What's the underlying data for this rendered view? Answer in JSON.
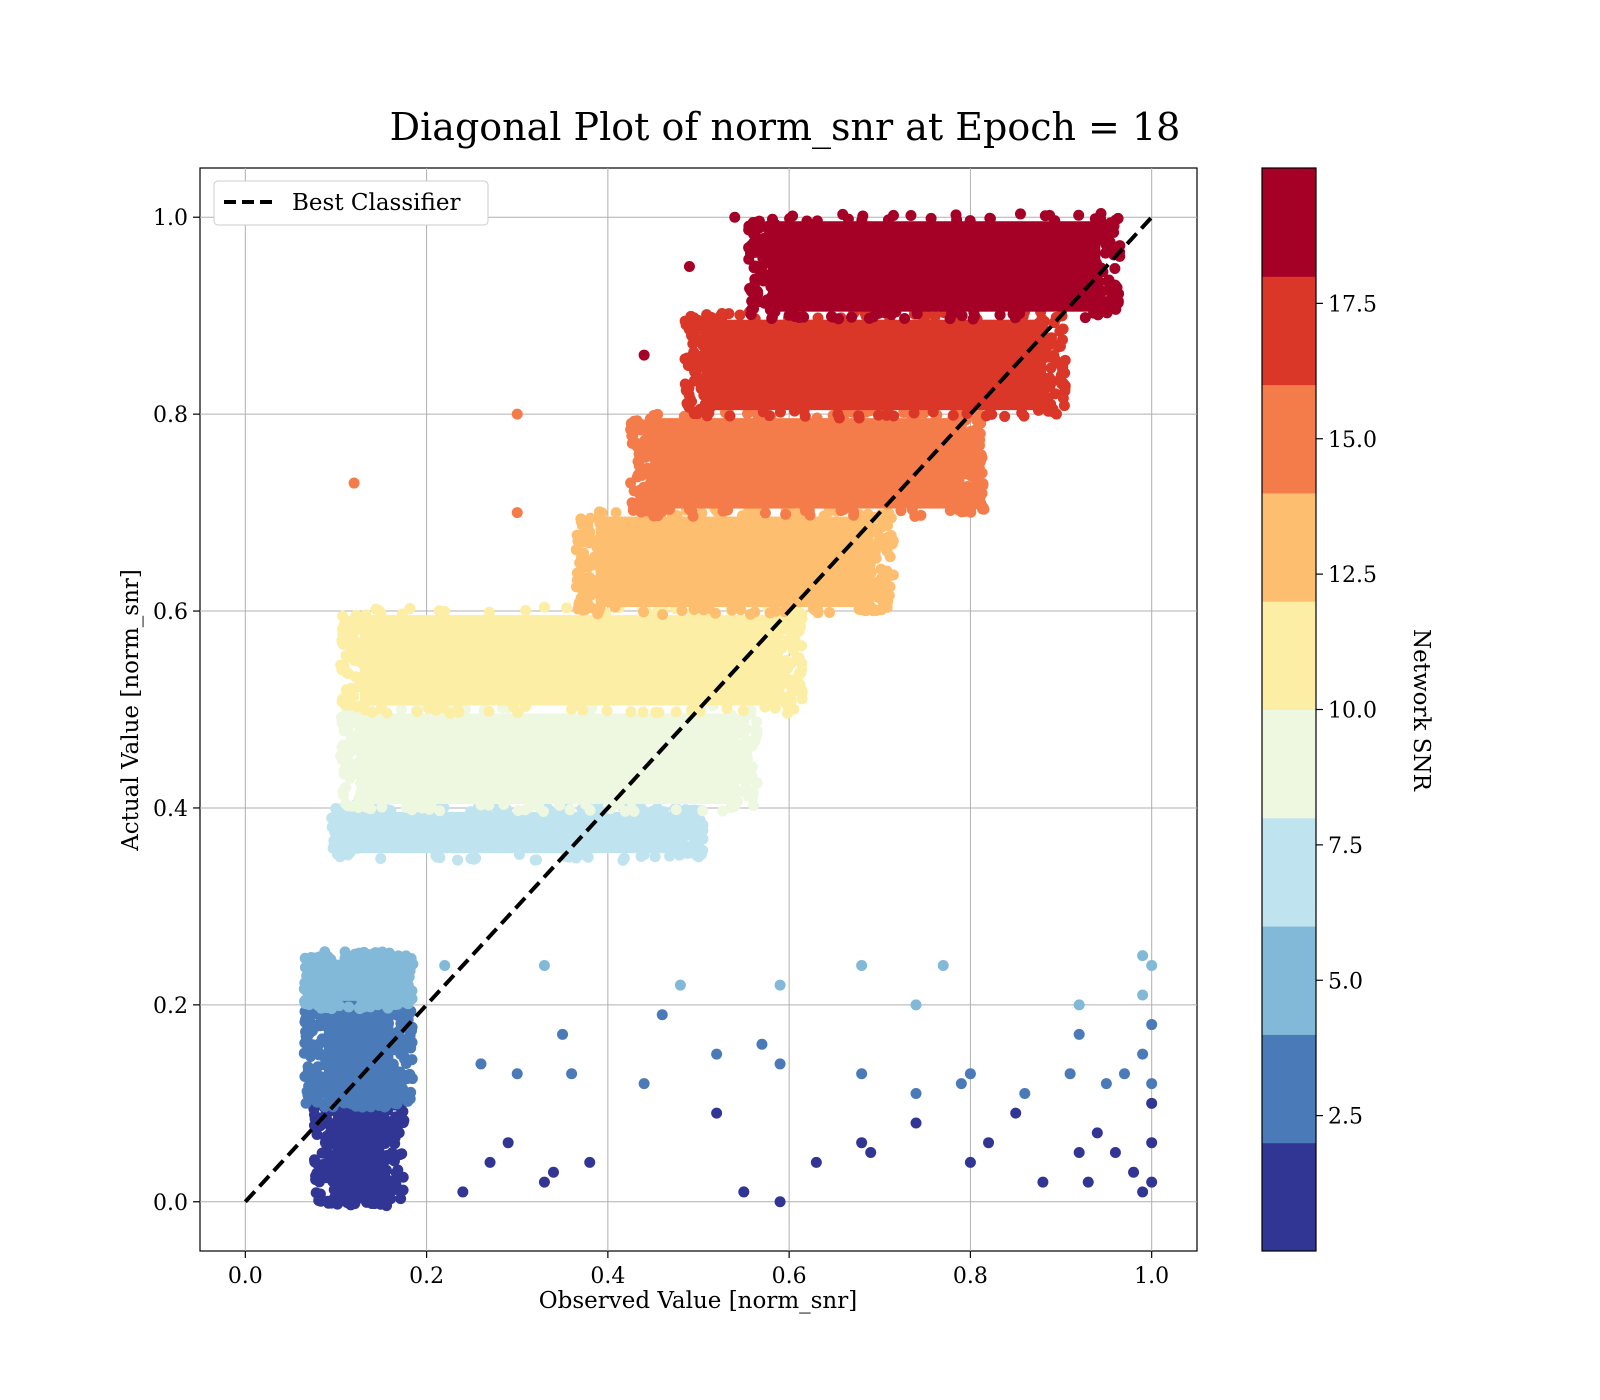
{
  "chart_data": {
    "type": "scatter",
    "title": "Diagonal Plot of norm_snr at Epoch = 18",
    "xlabel": "Observed Value [norm_snr]",
    "ylabel": "Actual Value [norm_snr]",
    "xlim": [
      -0.05,
      1.05
    ],
    "ylim": [
      -0.05,
      1.05
    ],
    "x_ticks": [
      "0.0",
      "0.2",
      "0.4",
      "0.6",
      "0.8",
      "1.0"
    ],
    "y_ticks": [
      "0.0",
      "0.2",
      "0.4",
      "0.6",
      "0.8",
      "1.0"
    ],
    "grid": true,
    "legend": {
      "position": "top-left",
      "entries": [
        "Best Classifier"
      ]
    },
    "reference_line": {
      "name": "Best Classifier",
      "x": [
        0,
        1
      ],
      "y": [
        0,
        1
      ],
      "style": "dashed",
      "color": "#000000"
    },
    "colorbar": {
      "label": "Network SNR",
      "range": [
        0,
        20
      ],
      "ticks": [
        "2.5",
        "5.0",
        "7.5",
        "10.0",
        "12.5",
        "15.0",
        "17.5"
      ],
      "tick_values": [
        2.5,
        5.0,
        7.5,
        10.0,
        12.5,
        15.0,
        17.5
      ],
      "colors": [
        "#313695",
        "#4a7ab7",
        "#82b8d8",
        "#bfe3ef",
        "#eef7e0",
        "#fdeea5",
        "#fdbf6f",
        "#f47c4a",
        "#da3728",
        "#a50026"
      ]
    },
    "bands": [
      {
        "color_index": 0,
        "ymin": 0.0,
        "ymax": 0.1,
        "xmin": 0.09,
        "xmax": 0.16,
        "dense": true
      },
      {
        "color_index": 1,
        "ymin": 0.1,
        "ymax": 0.2,
        "xmin": 0.08,
        "xmax": 0.17,
        "dense": true
      },
      {
        "color_index": 2,
        "ymin": 0.2,
        "ymax": 0.25,
        "xmin": 0.08,
        "xmax": 0.17,
        "dense": true
      },
      {
        "color_index": 3,
        "ymin": 0.35,
        "ymax": 0.4,
        "xmin": 0.11,
        "xmax": 0.49,
        "dense": true
      },
      {
        "color_index": 4,
        "ymin": 0.4,
        "ymax": 0.5,
        "xmin": 0.12,
        "xmax": 0.55,
        "dense": true
      },
      {
        "color_index": 5,
        "ymin": 0.5,
        "ymax": 0.6,
        "xmin": 0.12,
        "xmax": 0.6,
        "dense": true
      },
      {
        "color_index": 6,
        "ymin": 0.6,
        "ymax": 0.7,
        "xmin": 0.38,
        "xmax": 0.7,
        "dense": true
      },
      {
        "color_index": 7,
        "ymin": 0.7,
        "ymax": 0.8,
        "xmin": 0.44,
        "xmax": 0.8,
        "dense": true
      },
      {
        "color_index": 8,
        "ymin": 0.8,
        "ymax": 0.9,
        "xmin": 0.5,
        "xmax": 0.89,
        "dense": true
      },
      {
        "color_index": 9,
        "ymin": 0.9,
        "ymax": 1.0,
        "xmin": 0.57,
        "xmax": 0.95,
        "dense": true
      }
    ],
    "outliers": [
      {
        "x": 0.12,
        "y": 0.73,
        "c": 7
      },
      {
        "x": 0.3,
        "y": 0.8,
        "c": 7
      },
      {
        "x": 0.3,
        "y": 0.7,
        "c": 7
      },
      {
        "x": 0.54,
        "y": 1.0,
        "c": 9
      },
      {
        "x": 0.49,
        "y": 0.95,
        "c": 9
      },
      {
        "x": 0.44,
        "y": 0.86,
        "c": 9
      },
      {
        "x": 0.22,
        "y": 0.24,
        "c": 2
      },
      {
        "x": 0.33,
        "y": 0.24,
        "c": 2
      },
      {
        "x": 0.48,
        "y": 0.22,
        "c": 2
      },
      {
        "x": 0.59,
        "y": 0.22,
        "c": 2
      },
      {
        "x": 0.68,
        "y": 0.24,
        "c": 2
      },
      {
        "x": 0.74,
        "y": 0.2,
        "c": 2
      },
      {
        "x": 0.77,
        "y": 0.24,
        "c": 2
      },
      {
        "x": 0.92,
        "y": 0.2,
        "c": 2
      },
      {
        "x": 0.99,
        "y": 0.25,
        "c": 2
      },
      {
        "x": 1.0,
        "y": 0.24,
        "c": 2
      },
      {
        "x": 0.99,
        "y": 0.21,
        "c": 2
      },
      {
        "x": 0.35,
        "y": 0.17,
        "c": 1
      },
      {
        "x": 0.46,
        "y": 0.19,
        "c": 1
      },
      {
        "x": 0.52,
        "y": 0.15,
        "c": 1
      },
      {
        "x": 0.57,
        "y": 0.16,
        "c": 1
      },
      {
        "x": 0.59,
        "y": 0.14,
        "c": 1
      },
      {
        "x": 0.44,
        "y": 0.12,
        "c": 1
      },
      {
        "x": 0.68,
        "y": 0.13,
        "c": 1
      },
      {
        "x": 0.74,
        "y": 0.11,
        "c": 1
      },
      {
        "x": 0.79,
        "y": 0.12,
        "c": 1
      },
      {
        "x": 0.8,
        "y": 0.13,
        "c": 1
      },
      {
        "x": 0.86,
        "y": 0.11,
        "c": 1
      },
      {
        "x": 0.91,
        "y": 0.13,
        "c": 1
      },
      {
        "x": 0.92,
        "y": 0.17,
        "c": 1
      },
      {
        "x": 0.95,
        "y": 0.12,
        "c": 1
      },
      {
        "x": 0.97,
        "y": 0.13,
        "c": 1
      },
      {
        "x": 0.99,
        "y": 0.15,
        "c": 1
      },
      {
        "x": 1.0,
        "y": 0.18,
        "c": 1
      },
      {
        "x": 1.0,
        "y": 0.12,
        "c": 1
      },
      {
        "x": 0.3,
        "y": 0.13,
        "c": 1
      },
      {
        "x": 0.36,
        "y": 0.13,
        "c": 1
      },
      {
        "x": 0.26,
        "y": 0.14,
        "c": 1
      },
      {
        "x": 0.52,
        "y": 0.09,
        "c": 0
      },
      {
        "x": 0.55,
        "y": 0.01,
        "c": 0
      },
      {
        "x": 0.59,
        "y": 0.0,
        "c": 0
      },
      {
        "x": 0.63,
        "y": 0.04,
        "c": 0
      },
      {
        "x": 0.68,
        "y": 0.06,
        "c": 0
      },
      {
        "x": 0.69,
        "y": 0.05,
        "c": 0
      },
      {
        "x": 0.74,
        "y": 0.08,
        "c": 0
      },
      {
        "x": 0.8,
        "y": 0.04,
        "c": 0
      },
      {
        "x": 0.82,
        "y": 0.06,
        "c": 0
      },
      {
        "x": 0.85,
        "y": 0.09,
        "c": 0
      },
      {
        "x": 0.88,
        "y": 0.02,
        "c": 0
      },
      {
        "x": 0.92,
        "y": 0.05,
        "c": 0
      },
      {
        "x": 0.93,
        "y": 0.02,
        "c": 0
      },
      {
        "x": 0.94,
        "y": 0.07,
        "c": 0
      },
      {
        "x": 0.96,
        "y": 0.05,
        "c": 0
      },
      {
        "x": 0.98,
        "y": 0.03,
        "c": 0
      },
      {
        "x": 0.99,
        "y": 0.01,
        "c": 0
      },
      {
        "x": 1.0,
        "y": 0.1,
        "c": 0
      },
      {
        "x": 1.0,
        "y": 0.02,
        "c": 0
      },
      {
        "x": 1.0,
        "y": 0.06,
        "c": 0
      },
      {
        "x": 0.34,
        "y": 0.03,
        "c": 0
      },
      {
        "x": 0.33,
        "y": 0.02,
        "c": 0
      },
      {
        "x": 0.38,
        "y": 0.04,
        "c": 0
      },
      {
        "x": 0.29,
        "y": 0.06,
        "c": 0
      },
      {
        "x": 0.24,
        "y": 0.01,
        "c": 0
      },
      {
        "x": 0.27,
        "y": 0.04,
        "c": 0
      }
    ]
  }
}
